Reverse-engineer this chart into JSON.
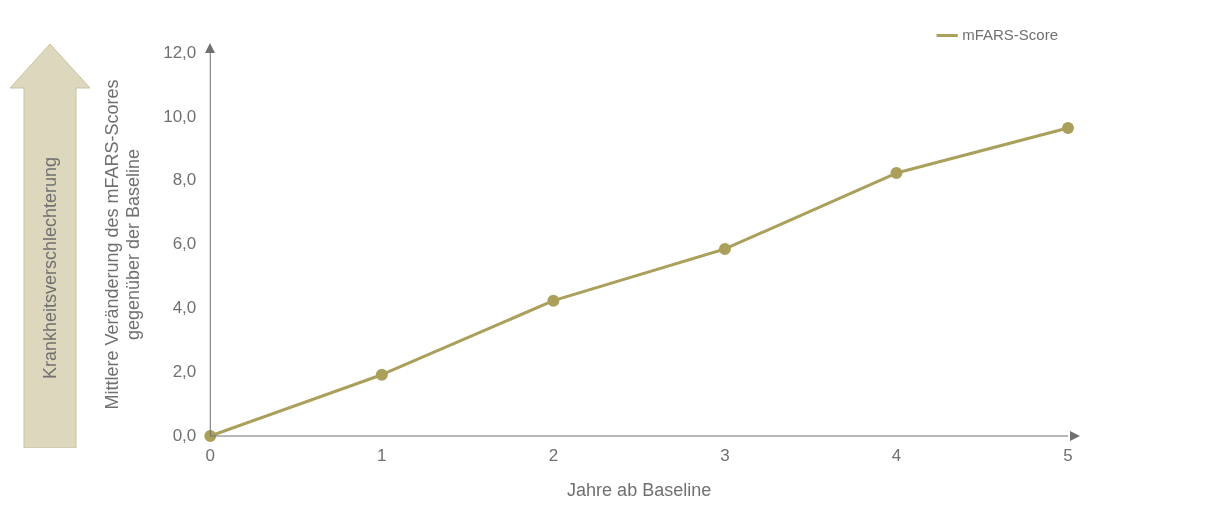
{
  "chart_data": {
    "type": "line",
    "xlabel": "Jahre ab Baseline",
    "ylabel": "Mittlere Veränderung des mFARS-Scores\ngegenüber der Baseline",
    "x": [
      0,
      1,
      2,
      3,
      4,
      5
    ],
    "series": [
      {
        "name": "mFARS-Score",
        "color": "#ab9f5c",
        "values": [
          0,
          1.92,
          4.24,
          5.86,
          8.24,
          9.65
        ]
      }
    ],
    "xlim": [
      0,
      5
    ],
    "xticks": [
      0,
      1,
      2,
      3,
      4,
      5
    ],
    "ylim": [
      0,
      12
    ],
    "yticks": [
      {
        "value": 0,
        "label": "0,0"
      },
      {
        "value": 2,
        "label": "2,0"
      },
      {
        "value": 4,
        "label": "4,0"
      },
      {
        "value": 6,
        "label": "6,0"
      },
      {
        "value": 8,
        "label": "8,0"
      },
      {
        "value": 10,
        "label": "10,0"
      },
      {
        "value": 12,
        "label": "12,0"
      }
    ],
    "grid": false,
    "legend": "top right",
    "marker": "circle",
    "line_style": "solid",
    "annotations": [
      "Krankheitsverschlechterung"
    ]
  }
}
